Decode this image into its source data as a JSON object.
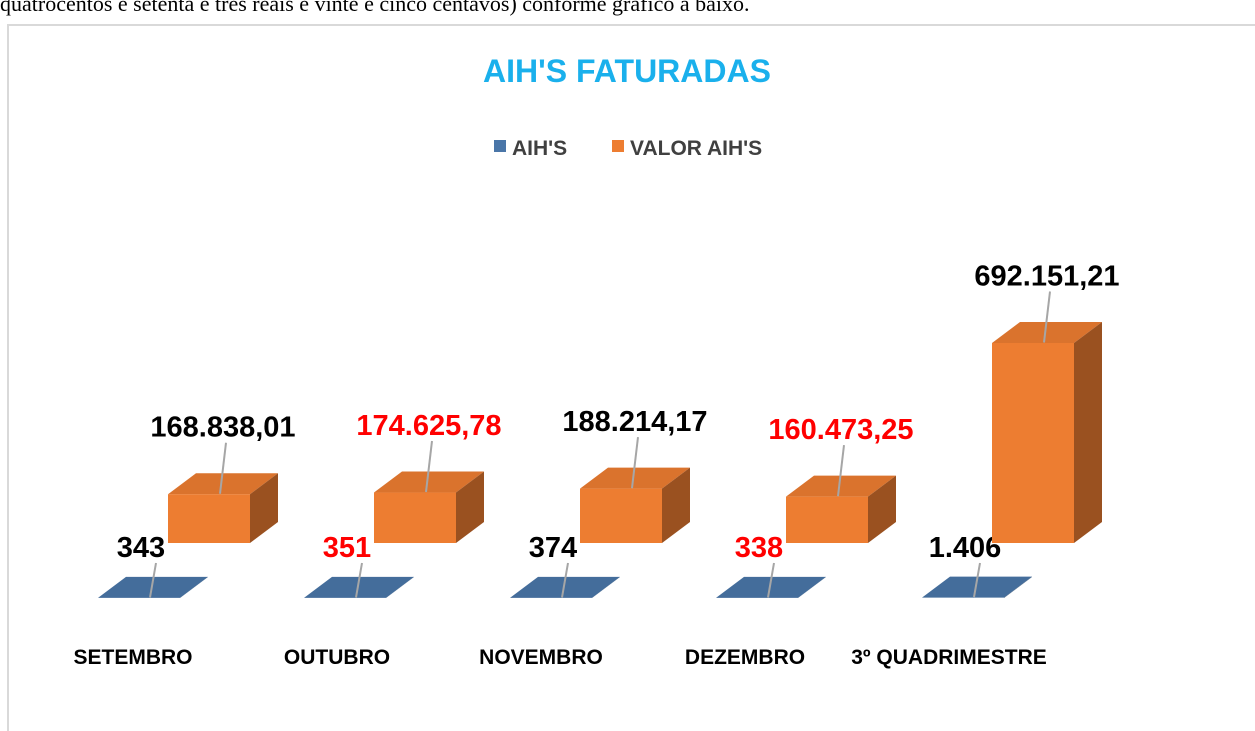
{
  "page_text": "quatrocentos e setenta e três reais e vinte e cinco centavos) conforme gráfico a baixo.",
  "chart_data": {
    "type": "bar3d",
    "title": "AIH'S FATURADAS",
    "categories": [
      "SETEMBRO",
      "OUTUBRO",
      "NOVEMBRO",
      "DEZEMBRO",
      "3º QUADRIMESTRE"
    ],
    "series": [
      {
        "name": "AIH'S",
        "color": "#4a76a8",
        "values": [
          343,
          351,
          374,
          338,
          1406
        ],
        "value_labels": [
          "343",
          "351",
          "374",
          "338",
          "1.406"
        ]
      },
      {
        "name": "VALOR AIH'S",
        "color": "#ed7d31",
        "values": [
          168838.01,
          174625.78,
          188214.17,
          160473.25,
          692151.21
        ],
        "value_labels": [
          "168.838,01",
          "174.625,78",
          "188.214,17",
          "160.473,25",
          "692.151,21"
        ]
      }
    ],
    "label_colors": [
      "#000000",
      "#ff0000",
      "#000000",
      "#ff0000",
      "#000000"
    ],
    "legend": "top"
  }
}
